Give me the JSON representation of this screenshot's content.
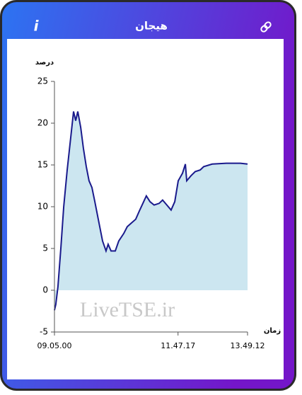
{
  "header": {
    "title": "هیجان",
    "info": "i"
  },
  "chart_data": {
    "type": "area",
    "y_label": "درصد",
    "x_label": "زمان",
    "watermark": "LiveTSE.ir",
    "x": [
      0,
      0.7,
      1.8,
      3.3,
      4.8,
      6.6,
      8.4,
      9.9,
      11,
      12.1,
      13.6,
      15,
      16.5,
      17.9,
      19.4,
      20.9,
      23.1,
      24.9,
      26.7,
      27.8,
      29.3,
      31.5,
      33.3,
      35.9,
      37.7,
      39.6,
      42.1,
      44,
      46.2,
      47.6,
      49.5,
      51.6,
      54.2,
      56,
      58.2,
      60.4,
      62.3,
      64.1,
      66.3,
      67.8,
      68.5,
      70.7,
      72.9,
      75.5,
      77.3,
      81.7,
      89,
      96.3,
      100
    ],
    "values": [
      -2.4,
      -1.7,
      0.4,
      5,
      10,
      14.4,
      18.2,
      21.4,
      20.3,
      21.4,
      19.5,
      17,
      14.8,
      13.1,
      12.3,
      10.6,
      8,
      5.9,
      4.7,
      5.5,
      4.7,
      4.7,
      5.9,
      6.8,
      7.6,
      8,
      8.5,
      9.5,
      10.6,
      11.3,
      10.6,
      10.2,
      10.4,
      10.8,
      10.2,
      9.6,
      10.6,
      13.1,
      14,
      15.1,
      13.1,
      13.7,
      14.2,
      14.4,
      14.8,
      15.1,
      15.2,
      15.2,
      15.1
    ],
    "color": "#1a1a8c",
    "fill": "#cce6f0",
    "xlim": [
      0,
      100
    ],
    "xticks": [
      {
        "value": 0,
        "label": "09.05.00"
      },
      {
        "value": 64,
        "label": "11.47.17"
      },
      {
        "value": 100,
        "label": "13.49.12"
      }
    ],
    "ylim": [
      -5,
      25
    ],
    "yticks": [
      -5,
      0,
      5,
      10,
      15,
      20,
      25
    ]
  }
}
